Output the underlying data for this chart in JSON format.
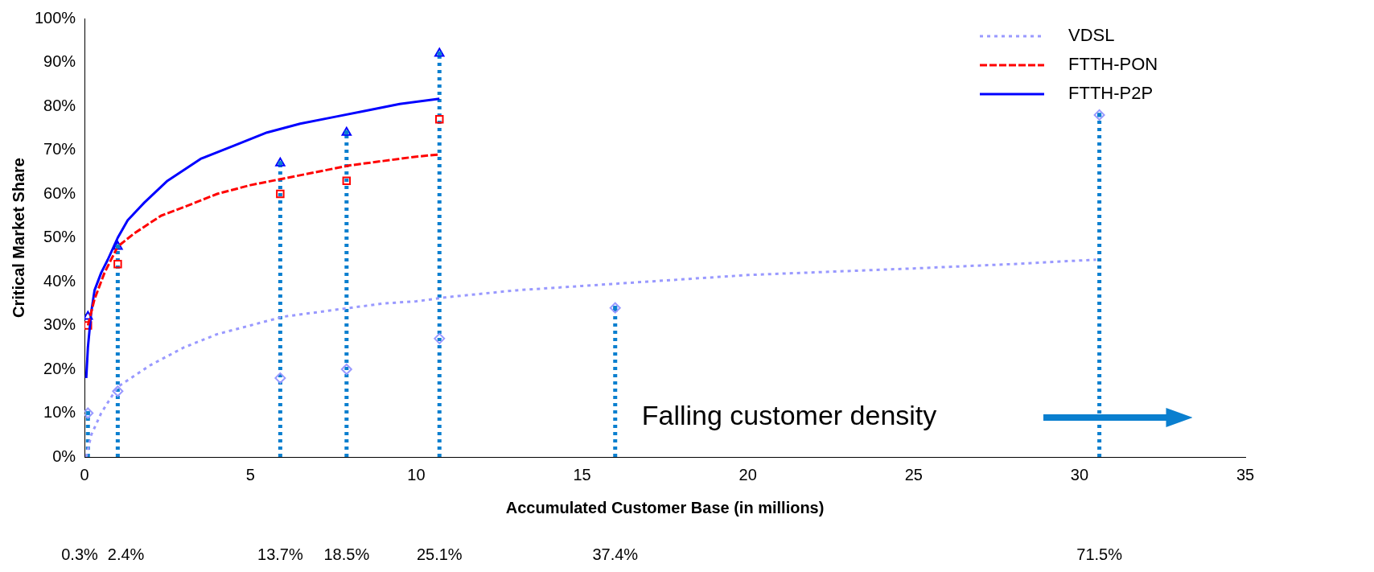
{
  "chart_data": {
    "type": "line",
    "xlabel": "Accumulated Customer Base (in millions)",
    "ylabel": "Critical Market Share",
    "xlim": [
      0,
      35
    ],
    "xticks": [
      0,
      5,
      10,
      15,
      20,
      25,
      30,
      35
    ],
    "ylim": [
      0,
      100
    ],
    "yticks": [
      {
        "value": 0,
        "label": "0%"
      },
      {
        "value": 10,
        "label": "10%"
      },
      {
        "value": 20,
        "label": "20%"
      },
      {
        "value": 30,
        "label": "30%"
      },
      {
        "value": 40,
        "label": "40%"
      },
      {
        "value": 50,
        "label": "50%"
      },
      {
        "value": 60,
        "label": "60%"
      },
      {
        "value": 70,
        "label": "70%"
      },
      {
        "value": 80,
        "label": "80%"
      },
      {
        "value": 90,
        "label": "90%"
      },
      {
        "value": 100,
        "label": "100%"
      }
    ],
    "grid": false,
    "legend": "top right",
    "series": [
      {
        "type": "lollipop",
        "color": "#0a7fcf",
        "marker": "square",
        "line_style": "dotted",
        "x": [
          0.1,
          1,
          5.9,
          7.9,
          10.7,
          16,
          30.6
        ],
        "values": [
          10,
          48,
          67,
          74,
          92,
          34,
          78
        ]
      },
      {
        "name": "VDSL",
        "color": "#9999ff",
        "marker": "none",
        "line_style": "dotted",
        "x": [
          0.05,
          0.2,
          0.5,
          1,
          2,
          3,
          4,
          5,
          6,
          7,
          8,
          9,
          10,
          11,
          13,
          15,
          17,
          20,
          25,
          28,
          30.5
        ],
        "values": [
          0,
          5,
          10,
          16,
          21,
          25,
          28,
          30,
          32,
          33,
          34,
          35,
          35.5,
          36.5,
          38,
          39,
          40,
          41.5,
          43,
          44,
          45
        ]
      },
      {
        "name": "FTTH-PON",
        "color": "#ff0000",
        "marker": "none",
        "line_style": "dashed",
        "x": [
          0.1,
          0.3,
          0.6,
          1,
          1.5,
          2.3,
          3,
          4,
          5,
          6,
          7,
          8,
          9,
          10,
          10.7
        ],
        "values": [
          30,
          36,
          42,
          48,
          51,
          55,
          57,
          60,
          62,
          63.5,
          65,
          66.5,
          67.5,
          68.5,
          69
        ]
      },
      {
        "name": "FTTH-P2P",
        "color": "#0000ff",
        "marker": "none",
        "line_style": "solid",
        "x": [
          0.05,
          0.1,
          0.2,
          0.3,
          0.5,
          0.7,
          1,
          1.3,
          1.8,
          2.5,
          3.5,
          4.5,
          5.5,
          6.5,
          7.5,
          8.5,
          9.5,
          10.7
        ],
        "values": [
          18,
          25,
          33,
          38,
          42,
          45,
          50,
          54,
          58,
          63,
          68,
          71,
          74,
          76,
          77.5,
          79,
          80.5,
          81.7
        ]
      },
      {
        "type": "scatter",
        "color": "#9999ff",
        "marker": "diamond",
        "x": [
          0.1,
          1,
          5.9,
          7.9,
          10.7,
          16,
          30.6
        ],
        "values": [
          10,
          15,
          18,
          20,
          27,
          34,
          78
        ]
      },
      {
        "type": "scatter",
        "color": "#ff0000",
        "marker": "square",
        "x": [
          0.1,
          1,
          5.9,
          7.9,
          10.7
        ],
        "values": [
          30,
          44,
          60,
          63,
          77
        ]
      },
      {
        "type": "scatter",
        "color": "#0000ff",
        "marker": "triangle",
        "x": [
          0.1,
          1,
          5.9,
          7.9,
          10.7
        ],
        "values": [
          32,
          48,
          67,
          74,
          92
        ]
      }
    ],
    "annotations": [
      "Falling customer density",
      "0.3%",
      "2.4%",
      "13.7%",
      "18.5%",
      "25.1%",
      "37.4%",
      "71.5%"
    ]
  }
}
